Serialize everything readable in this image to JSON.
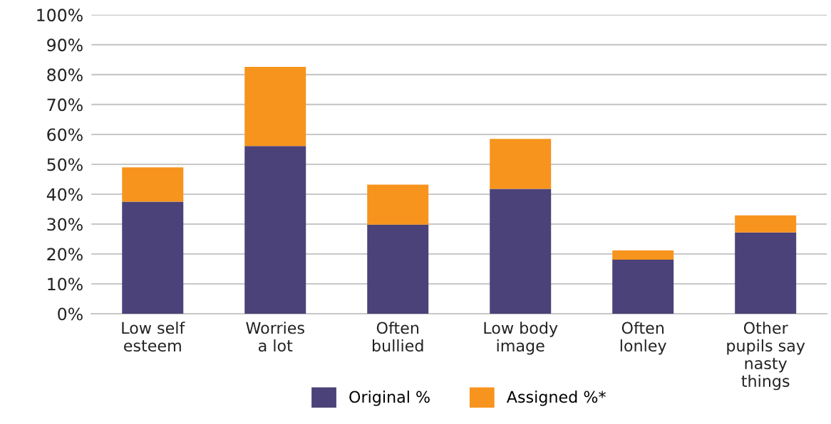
{
  "chart_data": {
    "type": "bar",
    "stacked": true,
    "categories": [
      "Low self\nesteem",
      "Worries\na lot",
      "Often\nbullied",
      "Low body\nimage",
      "Often\nlonley",
      "Other\npupils say\nnasty\nthings"
    ],
    "series": [
      {
        "name": "Original %",
        "color": "#4a4278",
        "values": [
          37.5,
          56.1,
          29.8,
          41.8,
          18.1,
          27.2
        ]
      },
      {
        "name": "Assigned %*",
        "color": "#f7941d",
        "values": [
          11.5,
          26.5,
          13.4,
          16.7,
          3.1,
          5.7
        ]
      }
    ],
    "ylim": [
      0,
      100
    ],
    "yticks": [
      {
        "value": 0,
        "label": "0%"
      },
      {
        "value": 10,
        "label": "10%"
      },
      {
        "value": 20,
        "label": "20%"
      },
      {
        "value": 30,
        "label": "30%"
      },
      {
        "value": 40,
        "label": "40%"
      },
      {
        "value": 50,
        "label": "50%"
      },
      {
        "value": 60,
        "label": "60%"
      },
      {
        "value": 70,
        "label": "70%"
      },
      {
        "value": 80,
        "label": "80%"
      },
      {
        "value": 90,
        "label": "90%"
      },
      {
        "value": 100,
        "label": "100%"
      }
    ],
    "grid": "y",
    "legend": "bottom"
  }
}
